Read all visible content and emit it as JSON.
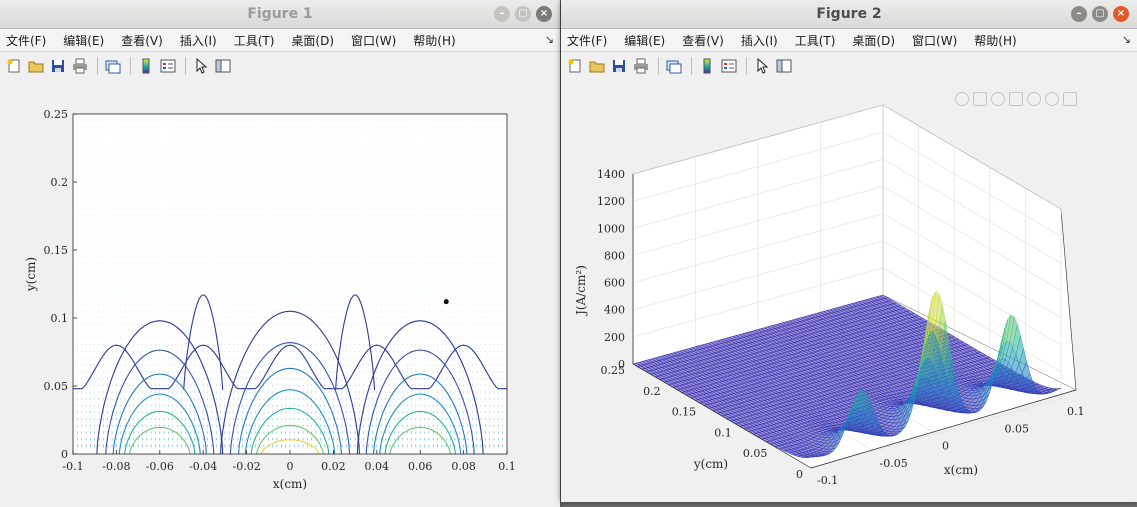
{
  "menu_items": [
    "文件(F)",
    "编辑(E)",
    "查看(V)",
    "插入(I)",
    "工具(T)",
    "桌面(D)",
    "窗口(W)",
    "帮助(H)"
  ],
  "menu_overflow": "↘",
  "toolbar_icons": [
    "new-figure-icon",
    "open-file-icon",
    "save-icon",
    "print-icon",
    "link-plot-icon",
    "colorbar-icon",
    "legend-icon",
    "pointer-icon",
    "property-editor-icon"
  ],
  "window_button_icons": [
    "minimize-icon",
    "maximize-icon",
    "close-icon"
  ],
  "axes_toolbar_icons": [
    "brush-icon",
    "data-tip-icon",
    "rotate-icon",
    "pan-icon",
    "zoom-in-icon",
    "zoom-out-icon",
    "home-icon"
  ],
  "colors": {
    "contour_low": "#2d3a96",
    "contour_mid": "#1f8fc4",
    "contour_high": "#27b39b",
    "contour_peak": "#e8d23a",
    "quiver": "#1b86b5",
    "mesh_low": "#3b2fb0",
    "mesh_high": "#f5e23a"
  },
  "figure1": {
    "title": "Figure 1",
    "chart_data": {
      "type": "contour",
      "title": "",
      "xlabel": "x(cm)",
      "ylabel": "y(cm)",
      "xlim": [
        -0.1,
        0.1
      ],
      "ylim": [
        0,
        0.25
      ],
      "xticks": [
        "-0.1",
        "-0.08",
        "-0.06",
        "-0.04",
        "-0.02",
        "0",
        "0.02",
        "0.04",
        "0.06",
        "0.08",
        "0.1"
      ],
      "yticks": [
        "0",
        "0.05",
        "0.1",
        "0.15",
        "0.2",
        "0.25"
      ],
      "centers": [
        -0.06,
        0,
        0.06
      ],
      "outer_lobe_heights": [
        0.098,
        0.105,
        0.098
      ],
      "marker": {
        "x": 0.072,
        "y": 0.112
      }
    }
  },
  "figure2": {
    "title": "Figure 2",
    "chart_data": {
      "type": "surface",
      "title": "",
      "xlabel": "x(cm)",
      "ylabel": "y(cm)",
      "zlabel": "J(A/cm²)",
      "zticks": [
        "0",
        "200",
        "400",
        "600",
        "800",
        "1000",
        "1200",
        "1400"
      ],
      "yticks": [
        "0",
        "0.05",
        "0.1",
        "0.15",
        "0.2",
        "0.25"
      ],
      "xticks": [
        "-0.1",
        "-0.05",
        "0",
        "0.05",
        "0.1"
      ],
      "zlim": [
        0,
        1400
      ],
      "peaks": [
        {
          "x": -0.06,
          "J": 450
        },
        {
          "x": 0,
          "J": 950
        },
        {
          "x": 0.06,
          "J": 700
        }
      ]
    }
  }
}
